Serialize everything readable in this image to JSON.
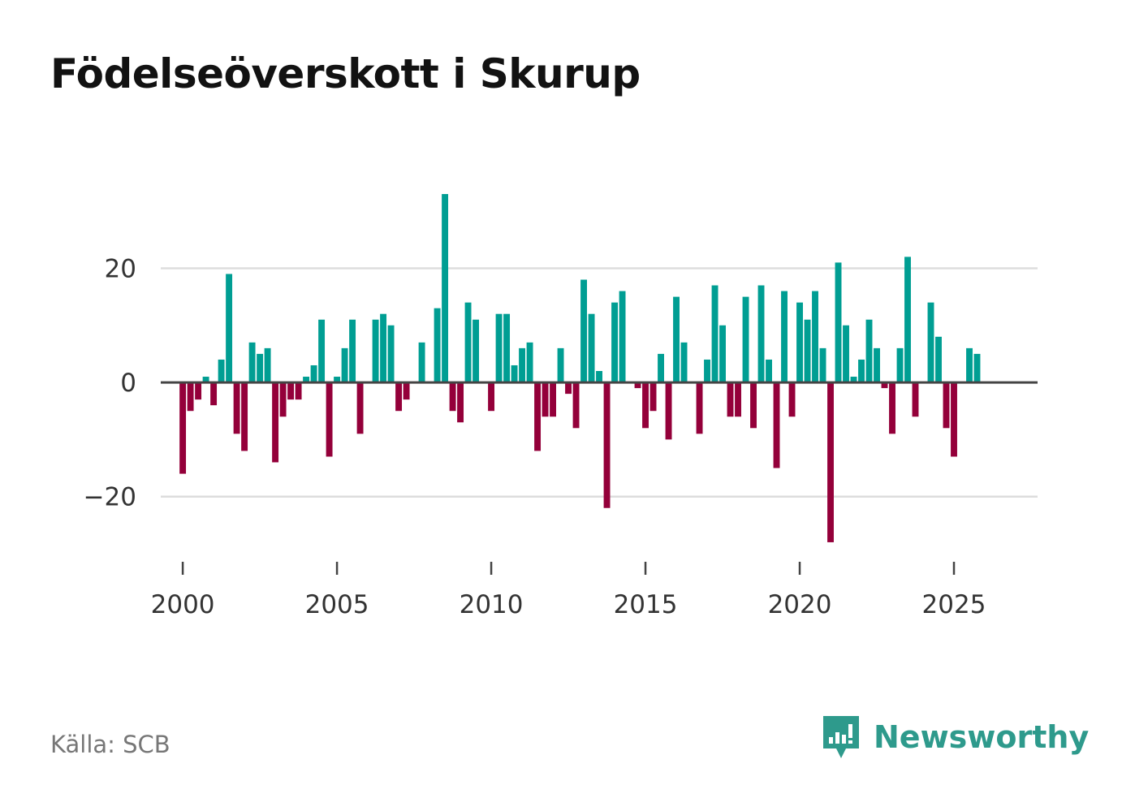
{
  "header": {
    "title": "Födelseöverskott i Skurup"
  },
  "footer": {
    "source": "Källa: SCB",
    "brand": "Newsworthy"
  },
  "colors": {
    "positive": "#009e93",
    "negative": "#94003a",
    "grid": "#dddddd",
    "zero_line": "#444444",
    "brand": "#2e9a8c"
  },
  "chart_data": {
    "type": "bar",
    "title": "Födelseöverskott i Skurup",
    "frequency": "quarterly",
    "start": 2000.0,
    "x_ticks": [
      2000,
      2005,
      2010,
      2015,
      2020,
      2025
    ],
    "x_tick_labels": [
      "2000",
      "2005",
      "2010",
      "2015",
      "2020",
      "2025"
    ],
    "y_ticks": [
      -20,
      0,
      20
    ],
    "y_tick_labels": [
      "−20",
      "0",
      "20"
    ],
    "xlim": [
      1998.55,
      2027.5
    ],
    "ylim": [
      -30,
      34
    ],
    "values": [
      -16,
      -5,
      -3,
      1,
      -4,
      4,
      19,
      -9,
      -12,
      7,
      5,
      6,
      -14,
      -6,
      -3,
      -3,
      1,
      3,
      11,
      -13,
      1,
      6,
      11,
      -9,
      0,
      11,
      12,
      10,
      -5,
      -3,
      0,
      7,
      0,
      13,
      33,
      -5,
      -7,
      14,
      11,
      0,
      -5,
      12,
      12,
      3,
      6,
      7,
      -12,
      -6,
      -6,
      6,
      -2,
      -8,
      18,
      12,
      2,
      -22,
      14,
      16,
      0,
      -1,
      -8,
      -5,
      5,
      -10,
      15,
      7,
      0,
      -9,
      4,
      17,
      10,
      -6,
      -6,
      15,
      -8,
      17,
      4,
      -15,
      16,
      -6,
      14,
      11,
      16,
      6,
      -28,
      21,
      10,
      1,
      4,
      11,
      6,
      -1,
      -9,
      6,
      22,
      -6,
      0,
      14,
      8,
      -8,
      -13,
      0,
      6,
      5
    ],
    "source": "SCB"
  }
}
